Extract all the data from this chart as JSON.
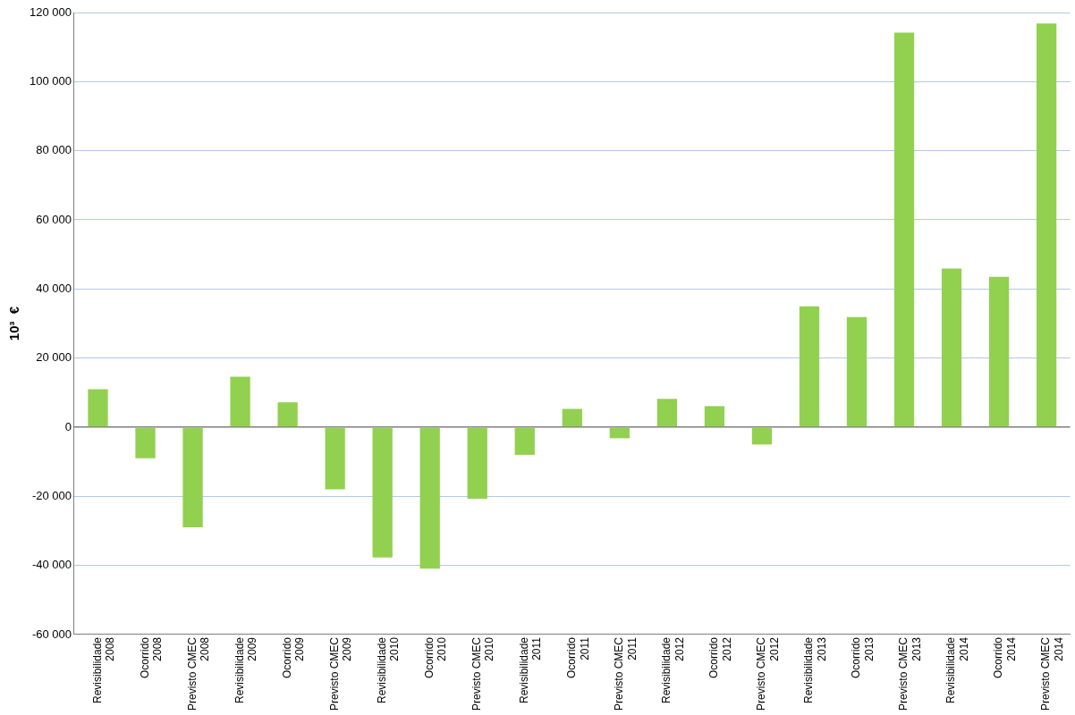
{
  "chart_data": {
    "type": "bar",
    "ylabel": "10³  €",
    "categories": [
      "Revisibilidade\n2008",
      "Ocorrido\n2008",
      "Previsto CMEC\n2008",
      "Revisibilidade\n2009",
      "Ocorrido\n2009",
      "Previsto CMEC\n2009",
      "Revisibilidade\n2010",
      "Ocorrido\n2010",
      "Previsto CMEC\n2010",
      "Revisibilidade\n2011",
      "Ocorrido\n2011",
      "Previsto CMEC\n2011",
      "Revisibilidade\n2012",
      "Ocorrido\n2012",
      "Previsto CMEC\n2012",
      "Revisibilidade\n2013",
      "Ocorrido\n2013",
      "Previsto CMEC\n2013",
      "Revisibilidade\n2014",
      "Ocorrido\n2014",
      "Previsto CMEC\n2014"
    ],
    "values": [
      11000,
      -9000,
      -29000,
      14600,
      7200,
      -18000,
      -37700,
      -40900,
      -20700,
      -8000,
      5300,
      -3200,
      8200,
      6100,
      -5000,
      35000,
      31900,
      114200,
      45900,
      43500,
      116800
    ],
    "color": "#92d050",
    "ylim": [
      -60000,
      120000
    ],
    "yticks": [
      {
        "value": -60000,
        "label": "-60 000"
      },
      {
        "value": -40000,
        "label": "-40 000"
      },
      {
        "value": -20000,
        "label": "-20 000"
      },
      {
        "value": 0,
        "label": "0"
      },
      {
        "value": 20000,
        "label": "20 000"
      },
      {
        "value": 40000,
        "label": "40 000"
      },
      {
        "value": 60000,
        "label": "60 000"
      },
      {
        "value": 80000,
        "label": "80 000"
      },
      {
        "value": 100000,
        "label": "100 000"
      },
      {
        "value": 120000,
        "label": "120 000"
      }
    ],
    "grid": "y",
    "legend": false
  }
}
